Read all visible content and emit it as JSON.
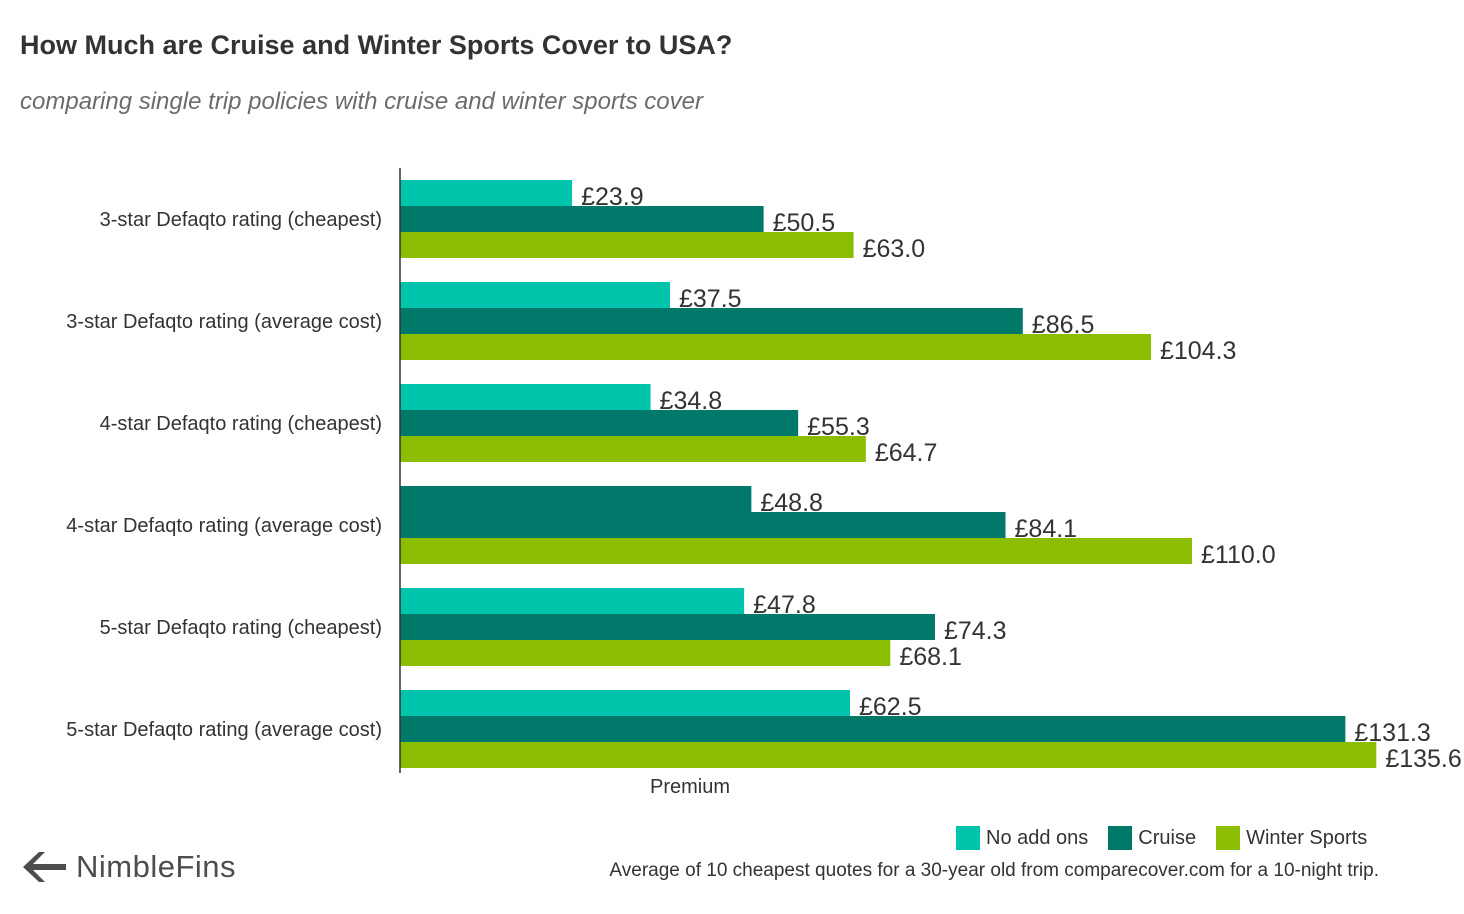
{
  "header": {
    "title": "How Much are Cruise and Winter Sports Cover to USA?",
    "subtitle": "comparing single trip policies with cruise and winter sports cover"
  },
  "colors": {
    "no_add_ons": "#00c4ac",
    "cruise": "#00796a",
    "winter_sports": "#8bbd00",
    "axis": "#333333"
  },
  "chart_data": {
    "type": "bar",
    "orientation": "horizontal",
    "categories": [
      "3-star Defaqto rating (cheapest)",
      "3-star Defaqto rating (average cost)",
      "4-star Defaqto rating (cheapest)",
      "4-star Defaqto rating (average cost)",
      "5-star Defaqto rating (cheapest)",
      "5-star Defaqto rating (average cost)"
    ],
    "series": [
      {
        "name": "No add ons",
        "values": [
          23.9,
          37.5,
          34.8,
          48.8,
          47.8,
          62.5
        ]
      },
      {
        "name": "Cruise",
        "values": [
          50.5,
          86.5,
          55.3,
          84.1,
          74.3,
          131.3
        ]
      },
      {
        "name": "Winter Sports",
        "values": [
          63.0,
          104.3,
          64.7,
          110.0,
          68.1,
          135.6
        ]
      }
    ],
    "value_labels": [
      [
        "£23.9",
        "£37.5",
        "£34.8",
        "£48.8",
        "£47.8",
        "£62.5"
      ],
      [
        "£50.5",
        "£86.5",
        "£55.3",
        "£84.1",
        "£74.3",
        "£131.3"
      ],
      [
        "£63.0",
        "£104.3",
        "£64.7",
        "£110.0",
        "£68.1",
        "£135.6"
      ]
    ],
    "xlabel": "Premium",
    "xlim": [
      0,
      136
    ],
    "grid": false,
    "legend": "bottom-right",
    "notes": "No add ons bar for 4-star Defaqto rating (average cost) is drawn in the Cruise colour in the original"
  },
  "legend": {
    "items": [
      {
        "label": "No add ons",
        "color": "#00c4ac"
      },
      {
        "label": "Cruise",
        "color": "#00796a"
      },
      {
        "label": "Winter Sports",
        "color": "#8bbd00"
      }
    ]
  },
  "footer": {
    "note": "Average of 10 cheapest quotes for a 30-year old from comparecover.com for a 10-night trip.",
    "brand": "NimbleFins",
    "logo_icon": "nimblefins-chevron-logo"
  }
}
